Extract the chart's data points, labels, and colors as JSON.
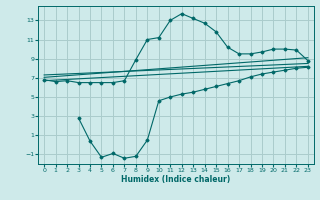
{
  "background_color": "#ceeaea",
  "grid_color": "#aacccc",
  "line_color": "#006868",
  "xlabel": "Humidex (Indice chaleur)",
  "xlim": [
    -0.5,
    23.5
  ],
  "ylim": [
    -2,
    14.5
  ],
  "yticks": [
    -1,
    1,
    3,
    5,
    7,
    9,
    11,
    13
  ],
  "xticks": [
    0,
    1,
    2,
    3,
    4,
    5,
    6,
    7,
    8,
    9,
    10,
    11,
    12,
    13,
    14,
    15,
    16,
    17,
    18,
    19,
    20,
    21,
    22,
    23
  ],
  "curve1_x": [
    0,
    1,
    2,
    3,
    4,
    5,
    6,
    7,
    8,
    9,
    10,
    11,
    12,
    13,
    14,
    15,
    16,
    17,
    18,
    19,
    20,
    21,
    22,
    23
  ],
  "curve1_y": [
    6.8,
    6.6,
    6.7,
    6.5,
    6.5,
    6.5,
    6.5,
    6.7,
    8.9,
    11.0,
    11.2,
    13.0,
    13.7,
    13.2,
    12.7,
    11.8,
    10.2,
    9.5,
    9.5,
    9.7,
    10.0,
    10.0,
    9.9,
    8.8
  ],
  "line2_x": [
    0,
    23
  ],
  "line2_y": [
    7.05,
    9.1
  ],
  "line3_x": [
    0,
    23
  ],
  "line3_y": [
    7.3,
    8.5
  ],
  "line4_x": [
    0,
    23
  ],
  "line4_y": [
    6.7,
    8.2
  ],
  "curve5_x": [
    3,
    4,
    5,
    6,
    7,
    8,
    9,
    10,
    11,
    12,
    13,
    14,
    15,
    16,
    17,
    18,
    19,
    20,
    21,
    22,
    23
  ],
  "curve5_y": [
    2.8,
    0.4,
    -1.3,
    -0.9,
    -1.4,
    -1.2,
    0.5,
    4.6,
    5.0,
    5.3,
    5.5,
    5.8,
    6.1,
    6.4,
    6.7,
    7.1,
    7.4,
    7.6,
    7.8,
    8.0,
    8.1
  ]
}
